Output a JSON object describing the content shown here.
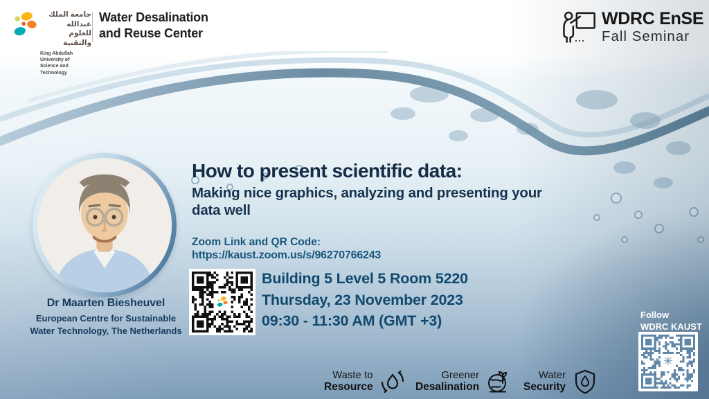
{
  "header": {
    "university": {
      "arabic_line1": "جامعة الملك عبدالله",
      "arabic_line2": "للعلوم والتقنية",
      "english_line1": "King Abdullah University of",
      "english_line2": "Science and Technology"
    },
    "center": {
      "line1": "Water Desalination",
      "line2": "and Reuse Center"
    },
    "seminar": {
      "line1": "WDRC EnSE",
      "line2": "Fall Seminar"
    }
  },
  "talk": {
    "title": "How to present scientific data:",
    "subtitle": "Making nice graphics, analyzing and presenting your data well",
    "zoom_label": "Zoom Link and QR Code:",
    "zoom_url": "https://kaust.zoom.us/s/96270766243"
  },
  "event": {
    "location": "Building 5 Level 5 Room 5220",
    "date": "Thursday, 23 November 2023",
    "time": "09:30 - 11:30 AM (GMT +3)"
  },
  "speaker": {
    "name": "Dr Maarten Biesheuvel",
    "affiliation_line1": "European Centre for Sustainable",
    "affiliation_line2": "Water Technology, The Netherlands"
  },
  "footer": {
    "themes": [
      {
        "line1": "Waste to",
        "line2": "Resource",
        "icon": "recycle-drop-icon"
      },
      {
        "line1": "Greener",
        "line2": "Desalination",
        "icon": "earth-plant-icon"
      },
      {
        "line1": "Water",
        "line2": "Security",
        "icon": "shield-drop-icon"
      }
    ],
    "follow": {
      "line1": "Follow",
      "line2": "WDRC KAUST"
    }
  },
  "icons": {
    "kaust_beacon": "kaust-beacon-icon",
    "presenter": "presenter-at-board-icon",
    "zoom_qr": "zoom-qr-code",
    "follow_qr": "follow-qr-code",
    "qr_center_asterisk": "✳"
  },
  "colors": {
    "title_navy": "#152c47",
    "link_blue": "#1a577d",
    "event_blue": "#11486e",
    "qr_dark": "#111111",
    "qr_light": "#ffffff",
    "follow_qr_blue": "#6288a8",
    "bottom_steel_blue": "#7e9cb8"
  }
}
